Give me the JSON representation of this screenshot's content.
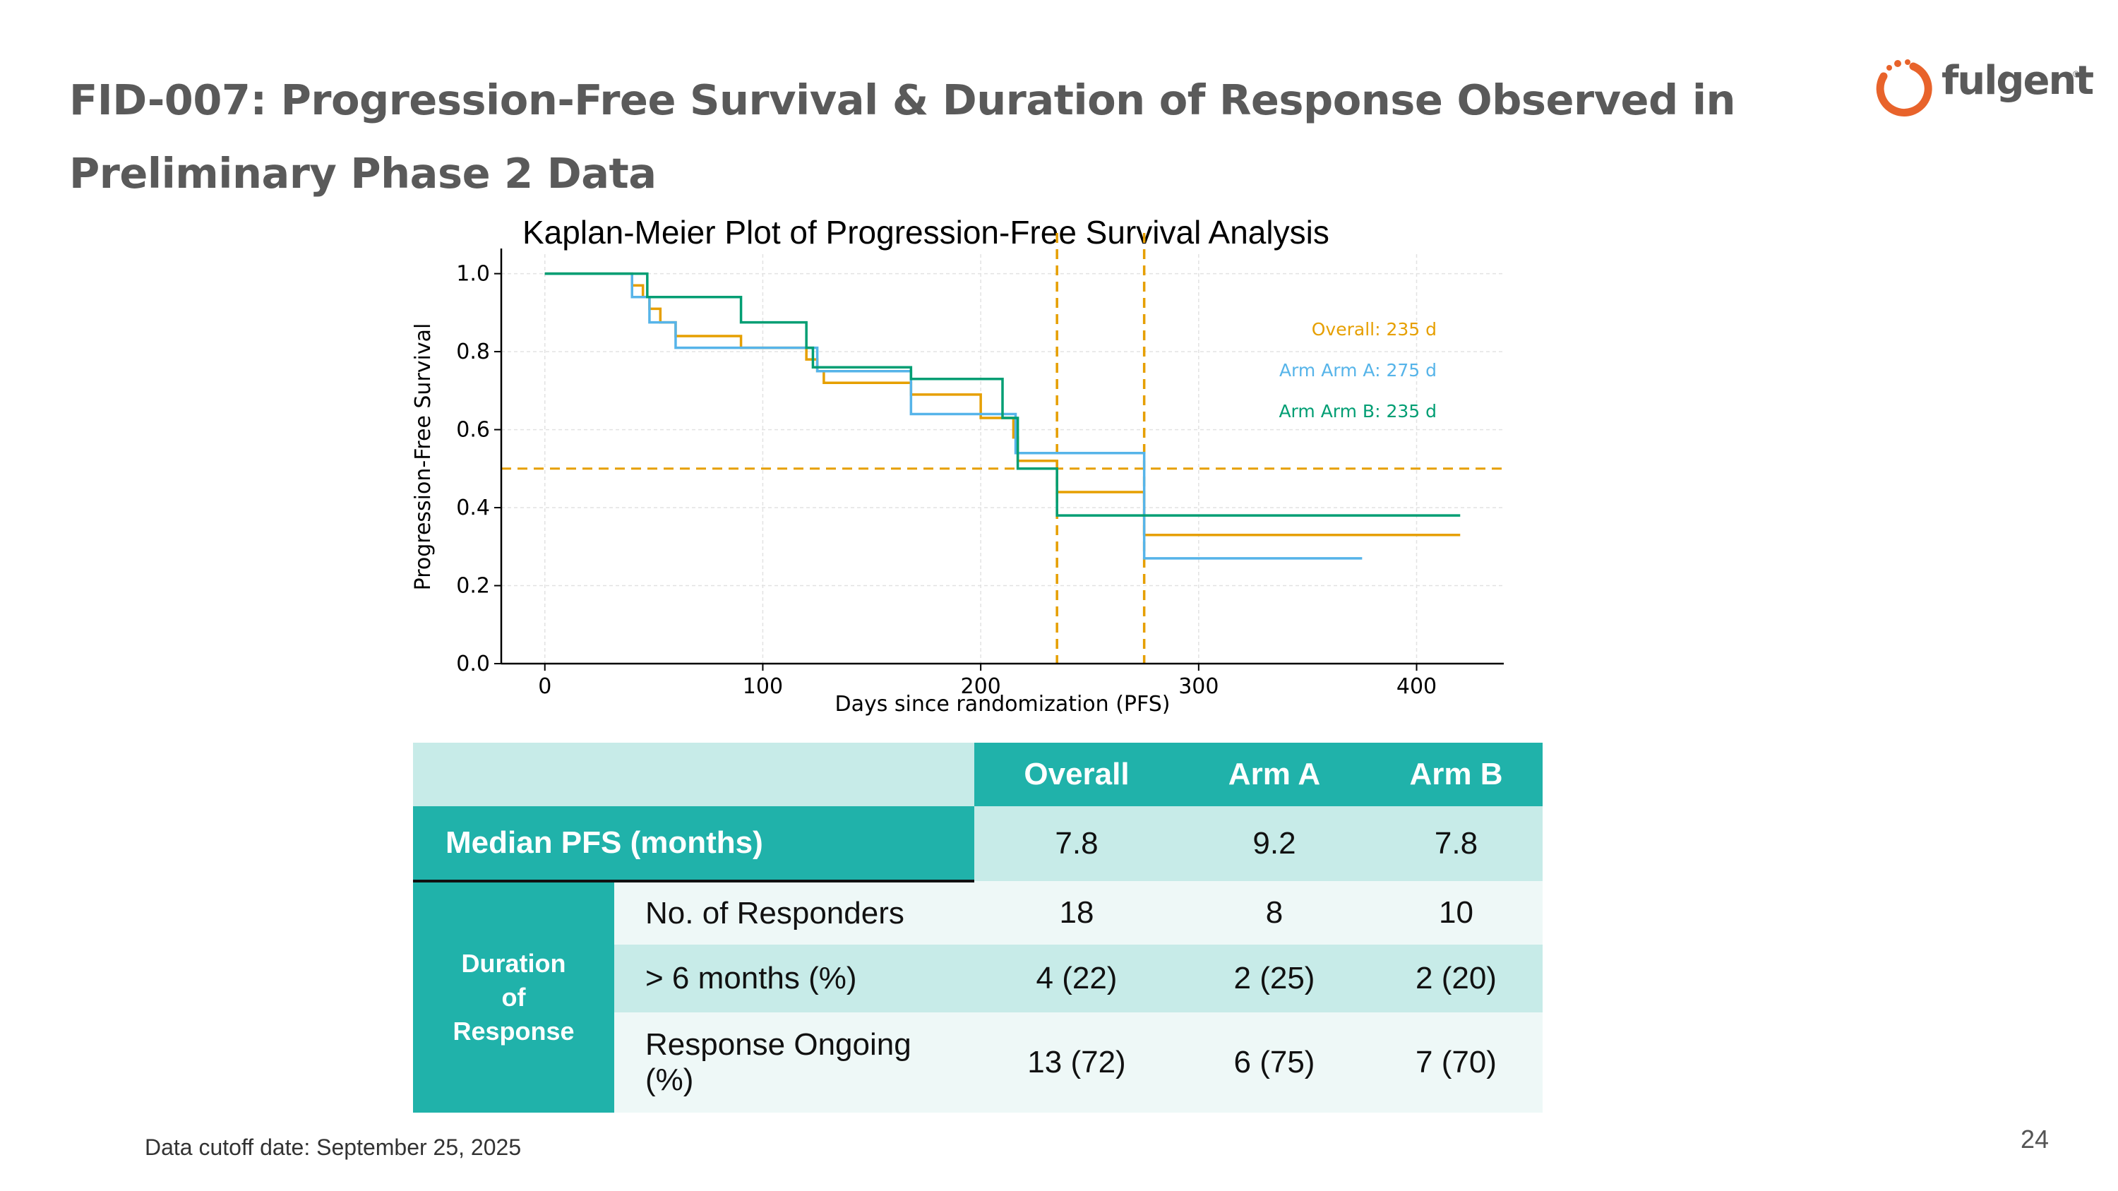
{
  "slide": {
    "title_line1": "FID-007: Progression-Free Survival & Duration of Response Observed in",
    "title_line2": "Preliminary Phase 2 Data",
    "logo_text": "fulgent",
    "footnote": "Data cutoff date: September 25, 2025",
    "page_number": "24"
  },
  "colors": {
    "overall": "#E69F00",
    "arm_a": "#56B4E9",
    "arm_b": "#009E73",
    "teal": "#20b2aa",
    "title_gray": "#5a5a5a",
    "logo_orange": "#E8632B"
  },
  "chart_data": {
    "type": "line",
    "step": true,
    "title": "Kaplan-Meier Plot of Progression-Free Survival Analysis",
    "xlabel": "Days since randomization (PFS)",
    "ylabel": "Progression-Free Survival",
    "xlim": [
      -20,
      440
    ],
    "ylim": [
      0,
      1.05
    ],
    "xticks": [
      0,
      100,
      200,
      300,
      400
    ],
    "yticks": [
      0.0,
      0.2,
      0.4,
      0.6,
      0.8,
      1.0
    ],
    "ytick_labels": [
      "0.0",
      "0.2",
      "0.4",
      "0.6",
      "0.8",
      "1.0"
    ],
    "grid": true,
    "series": [
      {
        "name": "Overall",
        "color": "#E69F00",
        "x": [
          0,
          28,
          40,
          45,
          48,
          53,
          60,
          90,
          120,
          125,
          128,
          168,
          200,
          203,
          215,
          217,
          235,
          275,
          420
        ],
        "y": [
          1.0,
          1.0,
          0.97,
          0.94,
          0.91,
          0.875,
          0.84,
          0.81,
          0.78,
          0.75,
          0.72,
          0.69,
          0.63,
          0.63,
          0.58,
          0.52,
          0.44,
          0.33,
          0.33
        ]
      },
      {
        "name": "Arm A",
        "color": "#56B4E9",
        "x": [
          0,
          28,
          40,
          48,
          53,
          60,
          125,
          128,
          168,
          203,
          216,
          275,
          375
        ],
        "y": [
          1.0,
          1.0,
          0.94,
          0.875,
          0.875,
          0.81,
          0.75,
          0.75,
          0.64,
          0.64,
          0.54,
          0.27,
          0.27
        ]
      },
      {
        "name": "Arm B",
        "color": "#009E73",
        "x": [
          0,
          28,
          47,
          90,
          120,
          123,
          168,
          210,
          217,
          235,
          275,
          420
        ],
        "y": [
          1.0,
          1.0,
          0.94,
          0.875,
          0.81,
          0.76,
          0.73,
          0.63,
          0.5,
          0.38,
          0.38,
          0.38
        ]
      }
    ],
    "reference_lines": [
      {
        "axis": "y",
        "value": 0.5,
        "color": "#E69F00",
        "style": "dashed"
      },
      {
        "axis": "x",
        "value": 235,
        "color": "#E69F00",
        "style": "dashed"
      },
      {
        "axis": "x",
        "value": 275,
        "color": "#E69F00",
        "style": "dashed"
      }
    ],
    "annotations": [
      {
        "text": "Overall: 235 d",
        "color": "#E69F00"
      },
      {
        "text": "Arm Arm A: 275 d",
        "color": "#56B4E9"
      },
      {
        "text": "Arm Arm B: 235 d",
        "color": "#009E73"
      }
    ],
    "legend_placement": "top-right"
  },
  "table": {
    "headers": [
      "Overall",
      "Arm A",
      "Arm B"
    ],
    "median_label": "Median PFS (months)",
    "median_values": [
      "7.8",
      "9.2",
      "7.8"
    ],
    "group_label_1": "Duration",
    "group_label_2": "of",
    "group_label_3": "Response",
    "rows": [
      {
        "label": "No. of Responders",
        "values": [
          "18",
          "8",
          "10"
        ]
      },
      {
        "label": "> 6 months (%)",
        "values": [
          "4 (22)",
          "2 (25)",
          "2 (20)"
        ]
      },
      {
        "label_line1": "Response Ongoing",
        "label_line2": "(%)",
        "values": [
          "13 (72)",
          "6 (75)",
          "7 (70)"
        ]
      }
    ]
  }
}
